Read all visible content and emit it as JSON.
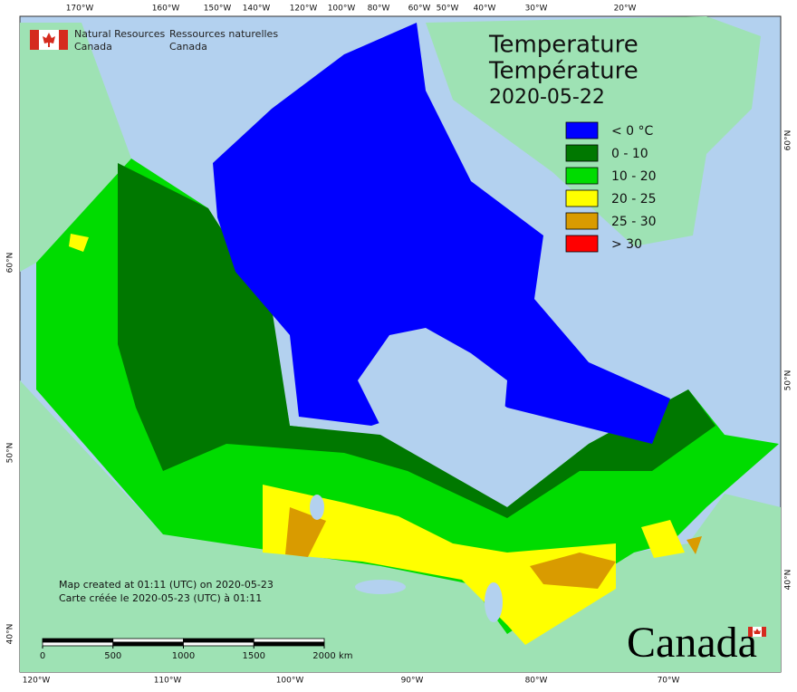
{
  "header": {
    "agency_en": [
      "Natural Resources",
      "Canada"
    ],
    "agency_fr": [
      "Ressources naturelles",
      "Canada"
    ]
  },
  "title": {
    "en": "Temperature",
    "fr": "Température",
    "date": "2020-05-22"
  },
  "legend": [
    {
      "label": "< 0 °C",
      "color": "#0000ff"
    },
    {
      "label": "0 - 10",
      "color": "#007800"
    },
    {
      "label": "10 - 20",
      "color": "#00dc00"
    },
    {
      "label": "20 - 25",
      "color": "#ffff00"
    },
    {
      "label": "25 - 30",
      "color": "#d99b00"
    },
    {
      "label": "> 30",
      "color": "#ff0000"
    }
  ],
  "graticule": {
    "top": [
      "170°W",
      "160°W",
      "150°W",
      "140°W",
      "120°W",
      "100°W",
      "80°W",
      "60°W",
      "50°W",
      "40°W",
      "30°W",
      "20°W"
    ],
    "bottom": [
      "120°W",
      "110°W",
      "100°W",
      "90°W",
      "80°W",
      "70°W"
    ],
    "left": [
      "60°N",
      "50°N",
      "40°N"
    ],
    "right": [
      "60°N",
      "50°N",
      "40°N"
    ]
  },
  "notes": [
    "Map created at 01:11 (UTC) on 2020-05-23",
    "Carte créée le 2020-05-23 (UTC) à 01:11"
  ],
  "scale": {
    "ticks": [
      0,
      500,
      1000,
      1500,
      2000
    ],
    "unit": "km"
  },
  "wordmark": "Canada"
}
